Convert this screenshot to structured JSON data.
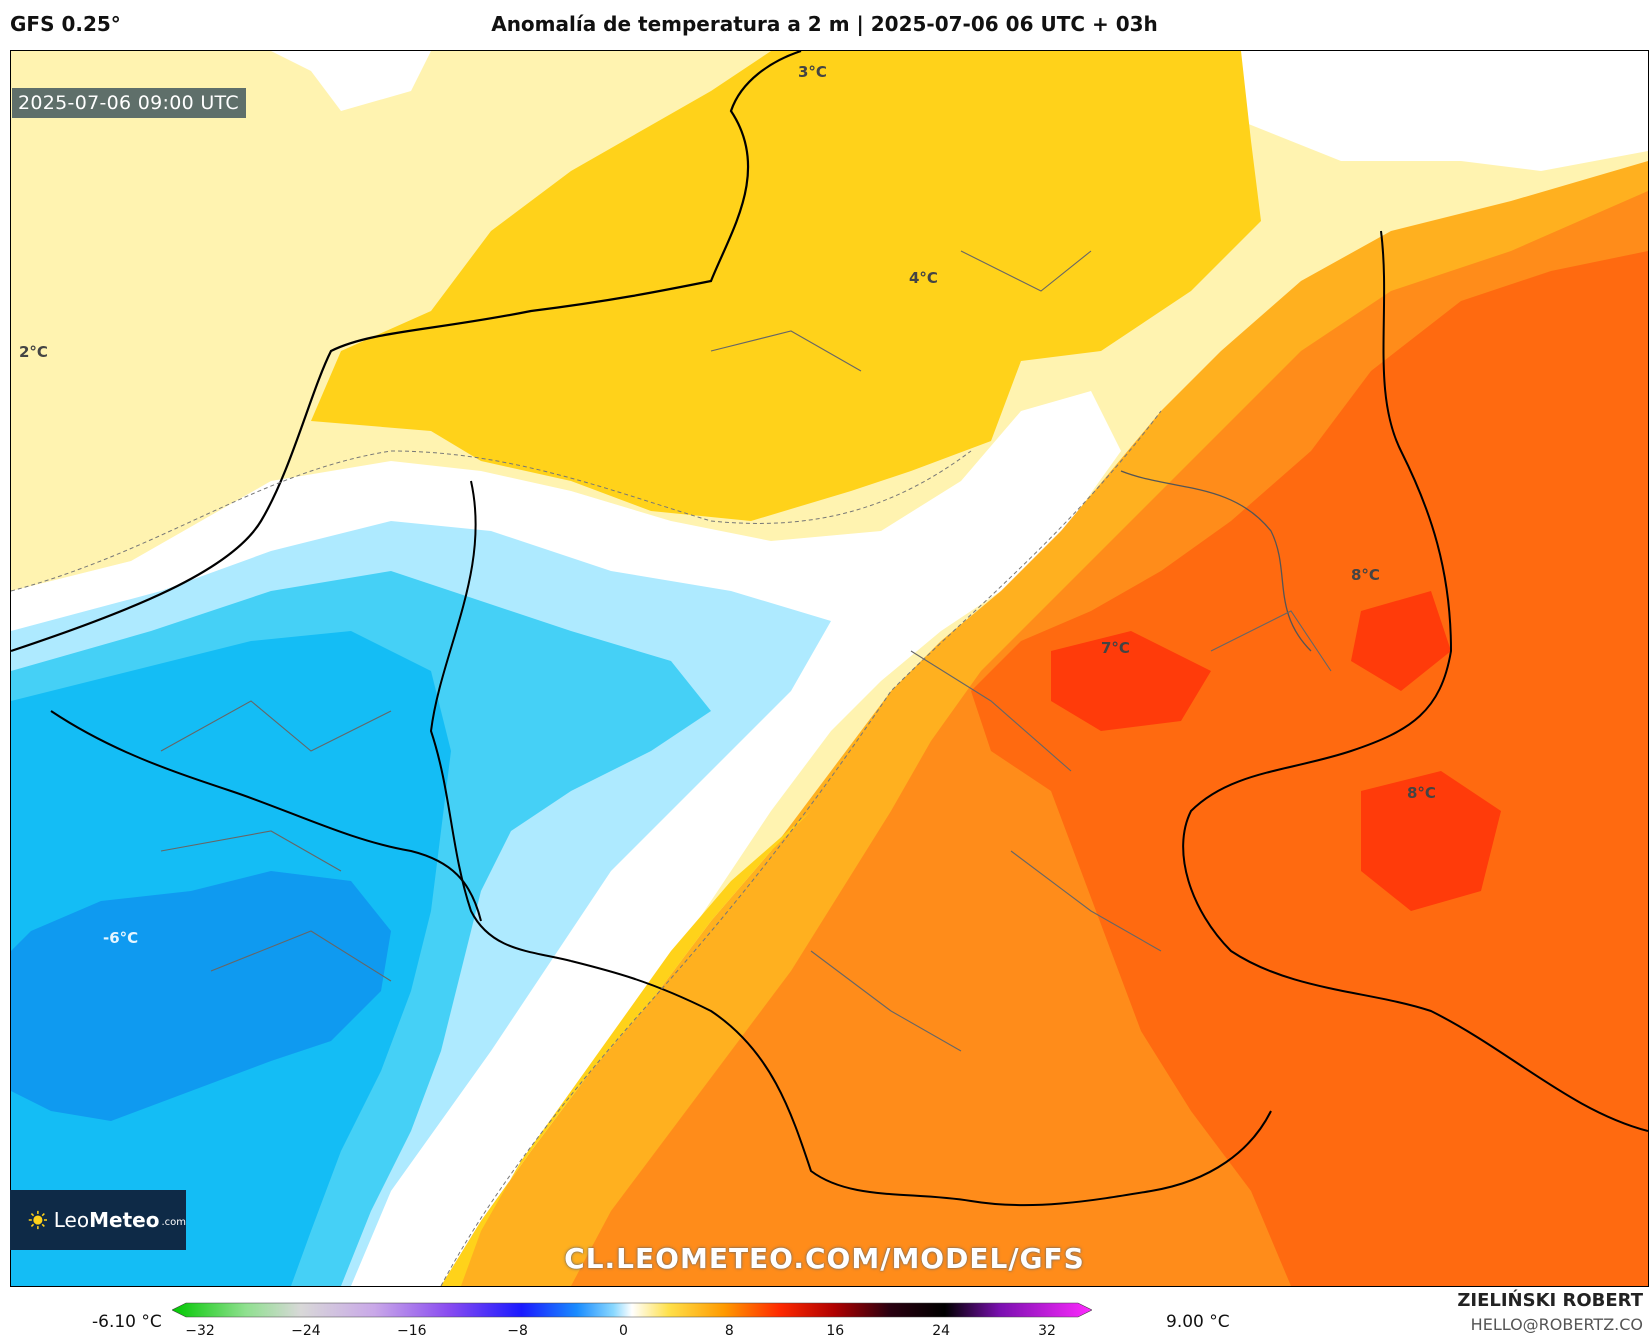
{
  "header": {
    "model": "GFS 0.25°",
    "title": "Anomalía de temperatura a 2 m | 2025-07-06 06 UTC + 03h"
  },
  "map": {
    "valid_time": "2025-07-06 09:00 UTC",
    "contour_labels": [
      "3°C",
      "4°C",
      "2°C",
      "8°C",
      "7°C",
      "8°C",
      "-6°C"
    ],
    "watermark": "CL.LEOMETEO.COM/MODEL/GFS",
    "logo": {
      "brand_light": "Leo",
      "brand_bold": "Meteo",
      "domain": ".com"
    },
    "colors": {
      "very_warm": "#ff3b0a",
      "warm_red": "#ff6a10",
      "orange": "#ff8c1a",
      "light_orange": "#ffb01f",
      "yellow": "#ffd21a",
      "pale_yellow": "#fff3b0",
      "white": "#ffffff",
      "pale_blue": "#aeeaff",
      "cyan": "#45d0f6",
      "sky_blue": "#14bdf5",
      "blue": "#0f9af0",
      "borders": "#000000"
    }
  },
  "legend": {
    "min_value": "-6.10 °C",
    "max_value": "9.00 °C",
    "ticks": [
      "−32",
      "−24",
      "−16",
      "−8",
      "0",
      "8",
      "16",
      "24",
      "32"
    ],
    "range": [
      -32,
      32
    ]
  },
  "credit": {
    "name": "ZIELIŃSKI ROBERT",
    "email": "HELLO@ROBERTZ.CO"
  }
}
